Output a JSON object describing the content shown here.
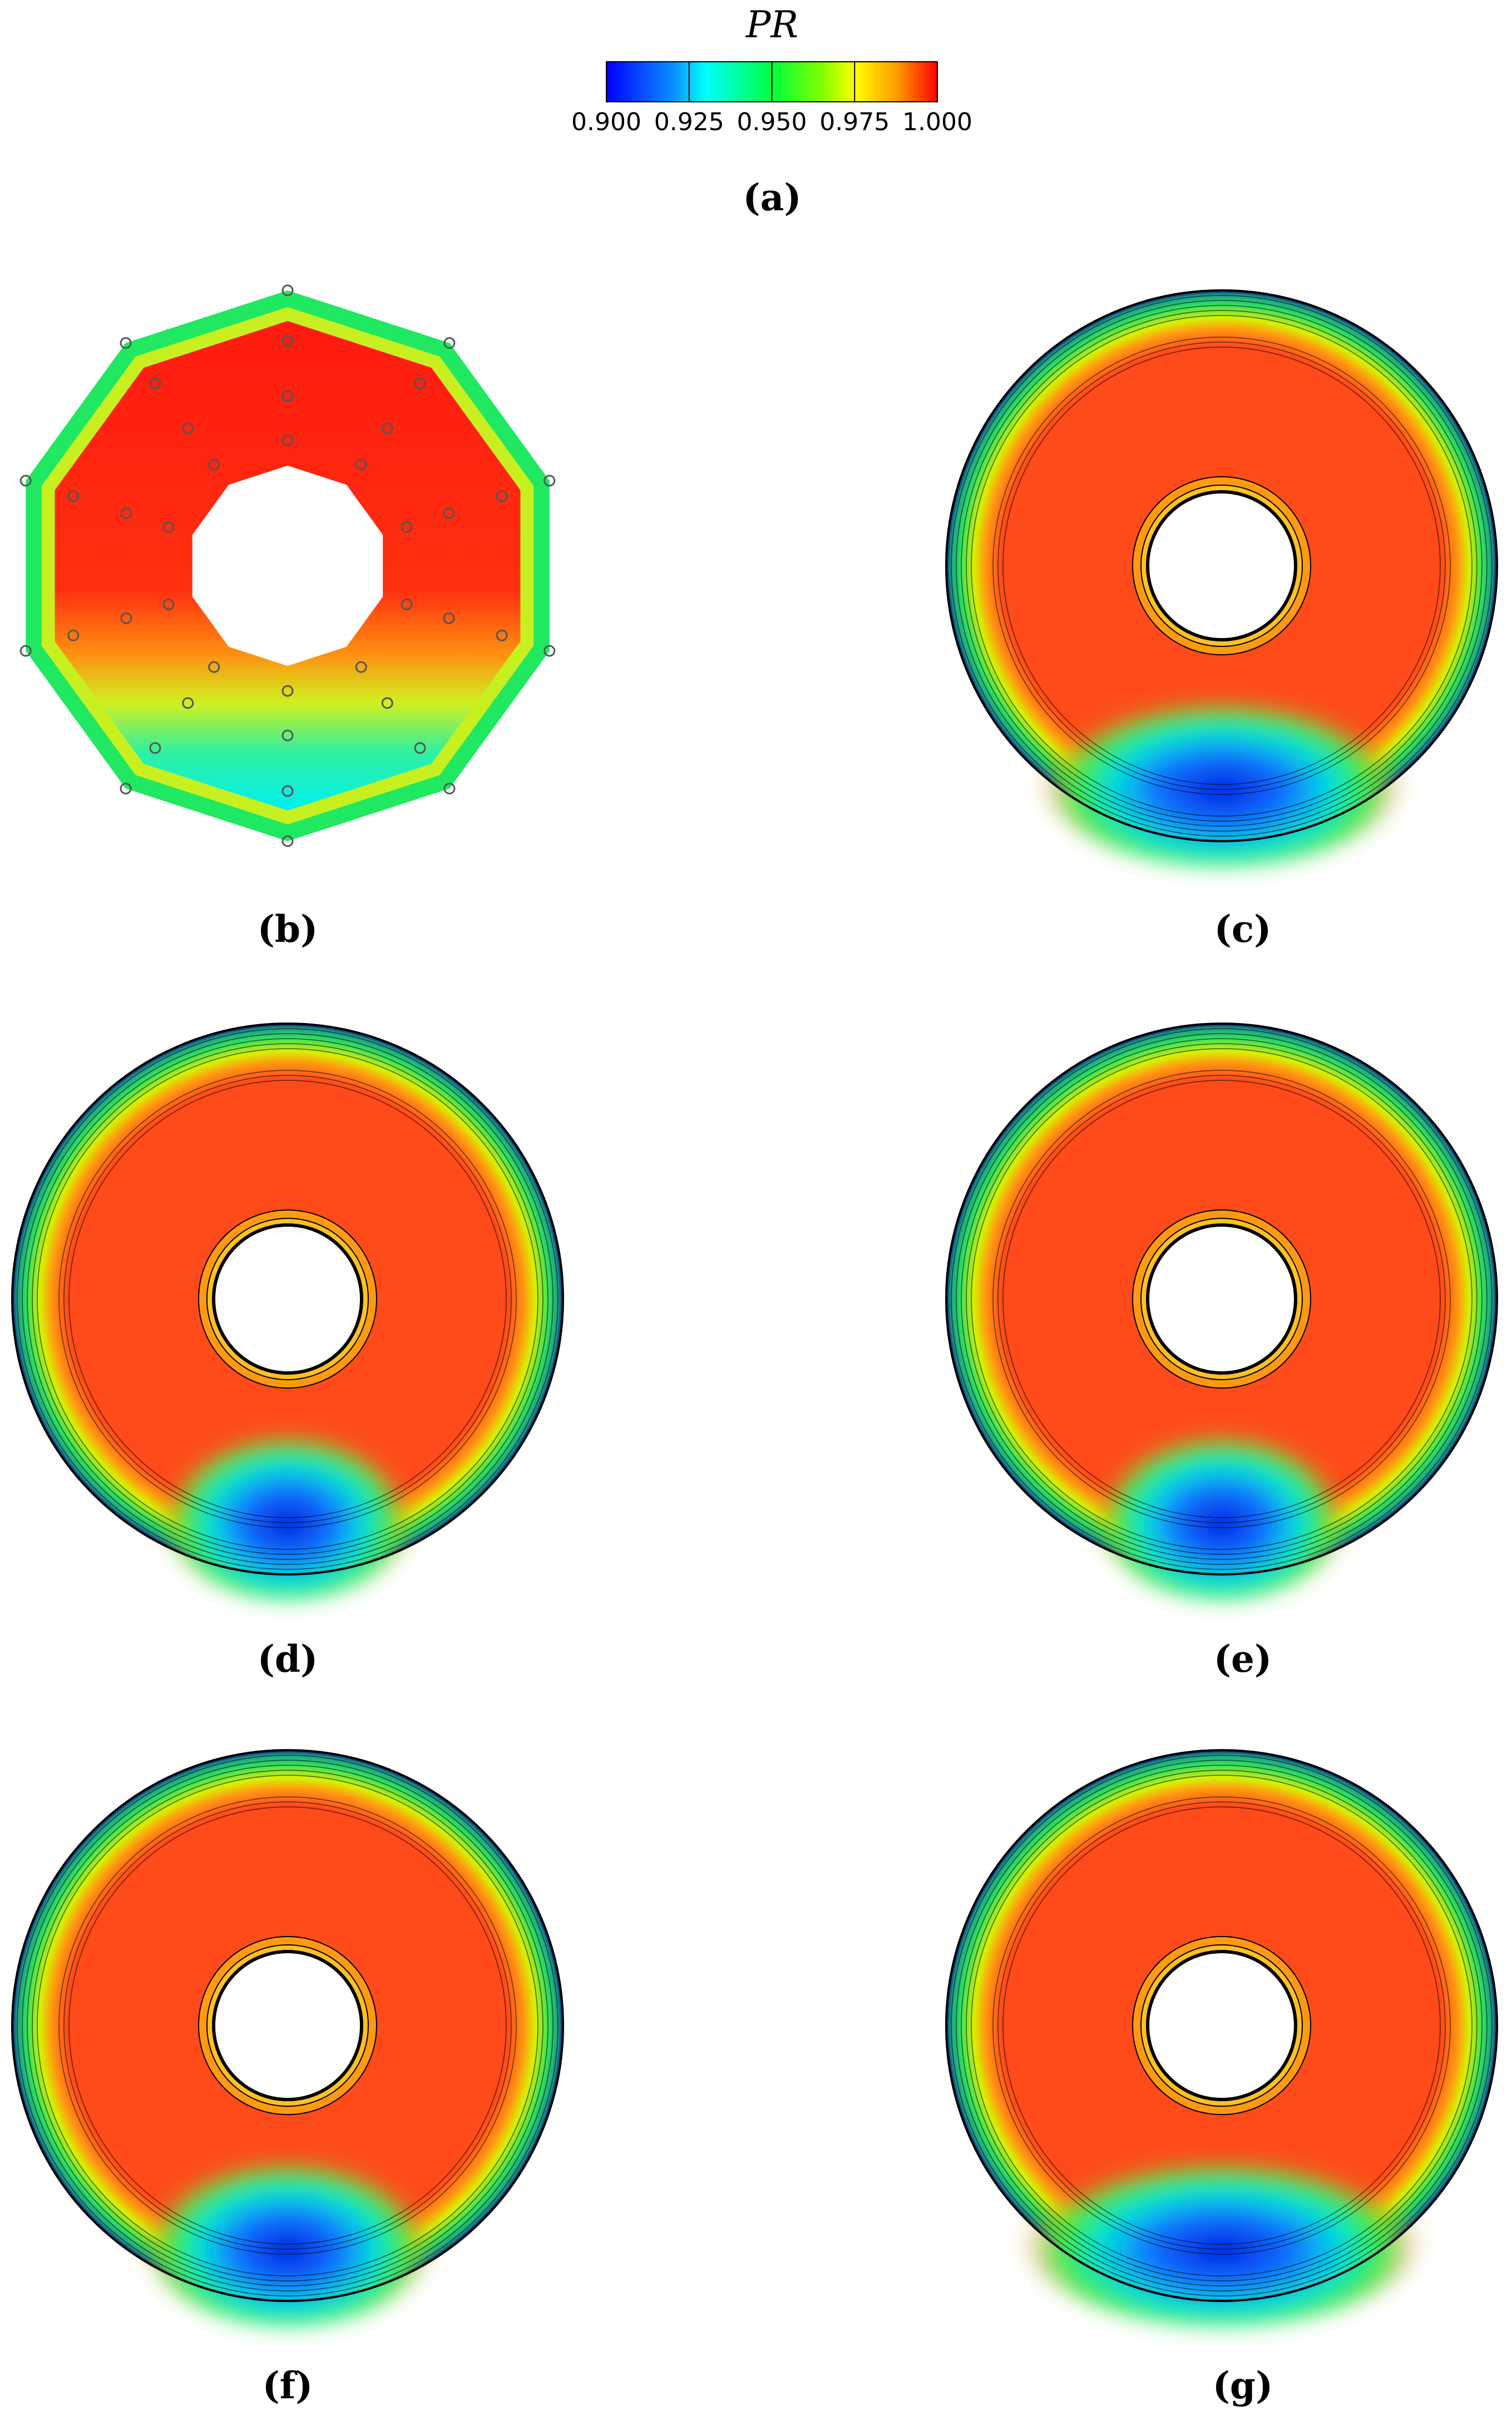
{
  "chart_data": {
    "type": "contour",
    "title": "PR",
    "zlim": [
      0.9,
      1.0
    ],
    "zticks": [
      {
        "value": 0.9,
        "label": "0.900"
      },
      {
        "value": 0.925,
        "label": "0.925"
      },
      {
        "value": 0.95,
        "label": "0.950"
      },
      {
        "value": 0.975,
        "label": "0.975"
      },
      {
        "value": 1.0,
        "label": "1.000"
      }
    ],
    "panels": [
      "(a)",
      "(b)",
      "(c)",
      "(d)",
      "(e)",
      "(f)",
      "(g)"
    ]
  }
}
